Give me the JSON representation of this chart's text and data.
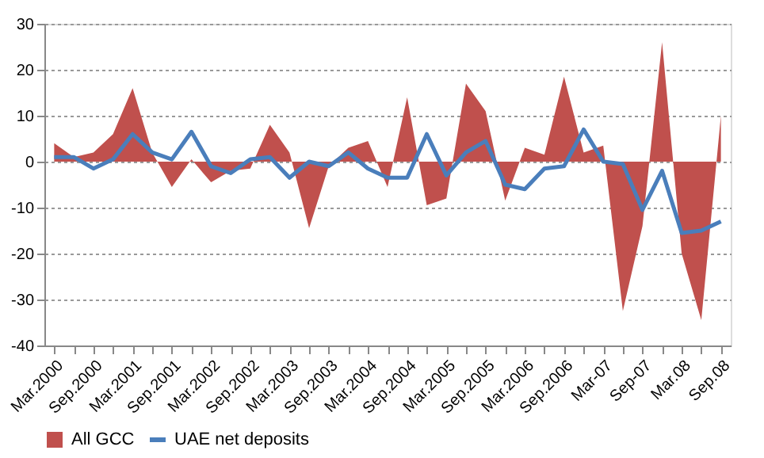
{
  "chart_data": {
    "type": "area",
    "categories": [
      "Mar.2000",
      null,
      "Sep.2000",
      null,
      "Mar.2001",
      null,
      "Sep.2001",
      null,
      "Mar.2002",
      null,
      "Sep.2002",
      null,
      "Mar.2003",
      null,
      "Sep.2003",
      null,
      "Mar.2004",
      null,
      "Sep.2004",
      null,
      "Mar.2005",
      null,
      "Sep.2005",
      null,
      "Mar.2006",
      null,
      "Sep.2006",
      null,
      "Mar-07",
      null,
      "Sep-07",
      null,
      "Mar.08",
      null,
      "Sep.08"
    ],
    "series": [
      {
        "name": "All GCC",
        "color": "#c0504d",
        "values": [
          4,
          1,
          2,
          6,
          16,
          2,
          -5.5,
          0.5,
          -4.5,
          -2,
          -1.5,
          8,
          2,
          -14.5,
          -1,
          3,
          4.5,
          -5.5,
          14,
          -9.5,
          -8,
          17,
          11,
          -8.5,
          3,
          1.5,
          18.5,
          2,
          3.5,
          -32.5,
          -14,
          26,
          -20,
          -34.5,
          10
        ]
      },
      {
        "name": "UAE net deposits",
        "type": "line",
        "color": "#4a7ebb",
        "values": [
          1,
          1,
          -1.5,
          0.5,
          6,
          2,
          0.5,
          6.5,
          -1,
          -2.5,
          0.5,
          1,
          -3.5,
          0,
          -1,
          2,
          -1.5,
          -3.5,
          -3.5,
          6,
          -3,
          2,
          4.5,
          -5,
          -6,
          -1.5,
          -1,
          7,
          0,
          -0.5,
          -10.5,
          -2,
          -15.5,
          -15,
          -13
        ]
      }
    ],
    "ylim": [
      -40,
      30
    ],
    "yticks": [
      -40,
      -30,
      -20,
      -10,
      0,
      10,
      20,
      30
    ],
    "grid": "y",
    "legend": "bottom"
  }
}
